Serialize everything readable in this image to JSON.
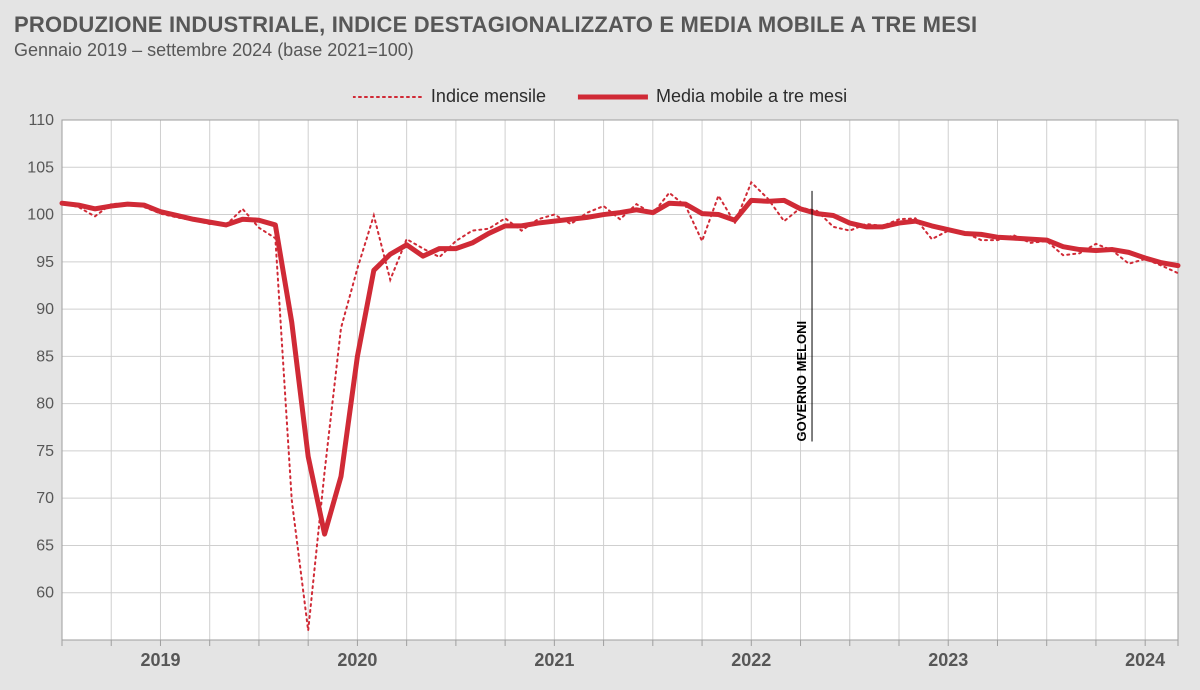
{
  "title": "PRODUZIONE INDUSTRIALE, INDICE DESTAGIONALIZZATO E MEDIA MOBILE A TRE MESI",
  "subtitle": "Gennaio 2019 – settembre 2024 (base 2021=100)",
  "chart": {
    "type": "line",
    "background_color": "#e4e4e4",
    "plot_background_color": "#ffffff",
    "grid_color": "#cfcfcf",
    "axis_color": "#9e9e9e",
    "y": {
      "min": 55,
      "max": 110,
      "tick_step": 5,
      "label_fontsize": 16
    },
    "x": {
      "start": "2019-01",
      "end": "2024-09",
      "n": 69,
      "year_marks": [
        {
          "label": "2019",
          "month_index": 6
        },
        {
          "label": "2020",
          "month_index": 18
        },
        {
          "label": "2021",
          "month_index": 30
        },
        {
          "label": "2022",
          "month_index": 42
        },
        {
          "label": "2023",
          "month_index": 54
        },
        {
          "label": "2024",
          "month_index": 66
        }
      ],
      "minor_every": 3
    },
    "legend": [
      {
        "key": "indice",
        "label": "Indice mensile",
        "style": "dotted",
        "color": "#d02a36",
        "width": 2
      },
      {
        "key": "mm3",
        "label": "Media mobile a tre mesi",
        "style": "solid",
        "color": "#d02a36",
        "width": 5
      }
    ],
    "annotation": {
      "label": "GOVERNO MELONI",
      "month_index": 45.7,
      "y_from": 76,
      "y_to": 102.5,
      "color": "#000000",
      "line_width": 1,
      "fontsize": 13
    },
    "series": {
      "indice": [
        101.2,
        100.8,
        99.8,
        101.1,
        101.2,
        100.8,
        100.1,
        99.7,
        99.4,
        99.0,
        98.9,
        100.6,
        98.6,
        97.5,
        69.8,
        56.0,
        72.8,
        88.0,
        94.3,
        99.9,
        93.1,
        97.4,
        96.4,
        95.5,
        97.2,
        98.3,
        98.5,
        99.6,
        98.3,
        99.5,
        100.0,
        99.0,
        100.2,
        100.9,
        99.5,
        101.1,
        100.1,
        102.3,
        100.9,
        97.2,
        102.0,
        99.1,
        103.4,
        101.7,
        99.3,
        100.7,
        100.4,
        98.7,
        98.3,
        99.0,
        98.8,
        99.5,
        99.6,
        97.4,
        98.3,
        98.1,
        97.3,
        97.3,
        97.8,
        97.0,
        97.2,
        95.7,
        95.9,
        96.9,
        96.2,
        94.8,
        95.3,
        94.6,
        93.8
      ],
      "mm3": [
        101.2,
        101.0,
        100.6,
        100.9,
        101.1,
        101.0,
        100.3,
        99.9,
        99.5,
        99.2,
        98.9,
        99.5,
        99.4,
        98.9,
        88.6,
        74.4,
        66.2,
        72.3,
        85.0,
        94.1,
        95.8,
        96.8,
        95.6,
        96.4,
        96.4,
        97.0,
        98.0,
        98.8,
        98.8,
        99.1,
        99.3,
        99.5,
        99.7,
        100.0,
        100.2,
        100.5,
        100.2,
        101.2,
        101.1,
        100.1,
        100.0,
        99.4,
        101.5,
        101.4,
        101.5,
        100.6,
        100.1,
        99.9,
        99.1,
        98.7,
        98.7,
        99.1,
        99.3,
        98.8,
        98.4,
        98.0,
        97.9,
        97.6,
        97.5,
        97.4,
        97.3,
        96.6,
        96.3,
        96.2,
        96.3,
        96.0,
        95.4,
        94.9,
        94.6
      ]
    }
  }
}
